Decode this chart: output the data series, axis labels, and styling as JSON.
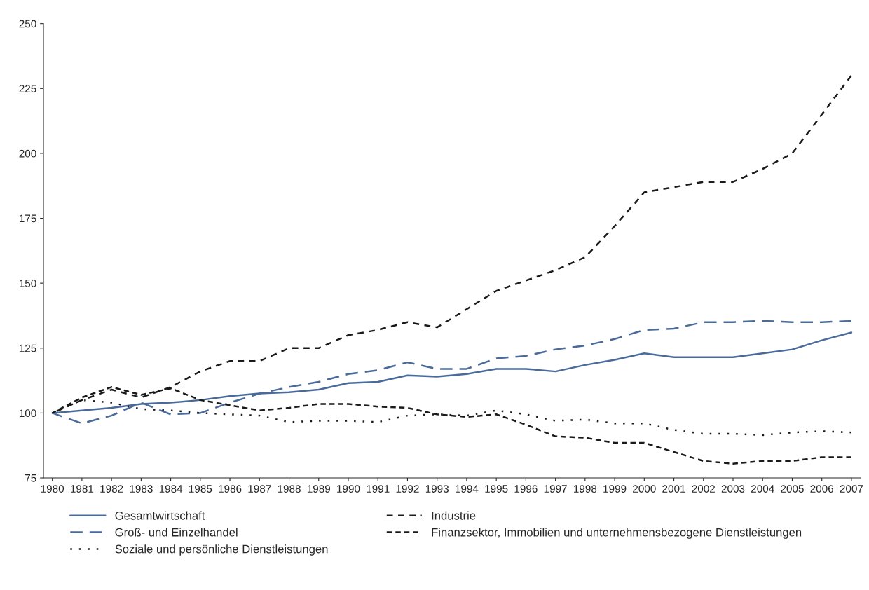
{
  "chart_data": {
    "type": "line",
    "categories": [
      "1980",
      "1981",
      "1982",
      "1983",
      "1984",
      "1985",
      "1986",
      "1987",
      "1988",
      "1989",
      "1990",
      "1991",
      "1992",
      "1993",
      "1994",
      "1995",
      "1996",
      "1997",
      "1998",
      "1999",
      "2000",
      "2001",
      "2002",
      "2003",
      "2004",
      "2005",
      "2006",
      "2007"
    ],
    "series": [
      {
        "name": "Gesamtwirtschaft",
        "color": "#4a6b9a",
        "line_style": "solid",
        "values": [
          100,
          101,
          102,
          103.5,
          104,
          105,
          106.5,
          107.5,
          108,
          109,
          111.5,
          112,
          114.5,
          114,
          115,
          117,
          117,
          116,
          118.5,
          120.5,
          123,
          121.5,
          121.5,
          121.5,
          123,
          124.5,
          128,
          131
        ]
      },
      {
        "name": "Industrie",
        "color": "#1a1a1a",
        "line_style": "loosely dashed",
        "values": [
          100,
          105,
          109,
          106,
          110,
          116,
          120,
          120,
          125,
          125,
          130,
          132,
          135,
          133,
          140,
          147,
          151,
          155,
          160,
          172,
          185,
          187,
          189,
          189,
          194,
          200,
          215,
          230
        ]
      },
      {
        "name": "Groß- und Einzelhandel",
        "color": "#4a6b9a",
        "line_style": "dashed",
        "values": [
          100,
          96,
          99,
          104,
          99.5,
          100,
          104,
          107.5,
          110,
          112,
          115,
          116.5,
          119.5,
          117,
          117,
          121,
          122,
          124.5,
          126,
          128.5,
          132,
          132.5,
          135,
          135,
          135.5,
          135,
          135,
          135.5
        ]
      },
      {
        "name": "Finanzsektor, Immobilien und unternehmensbezogene Dienstleistungen",
        "color": "#1a1a1a",
        "line_style": "densely dashed",
        "values": [
          100,
          106,
          110,
          107,
          109.5,
          105,
          103,
          101,
          102,
          103.5,
          103.5,
          102.5,
          102,
          99.5,
          98.5,
          99.5,
          95.5,
          91,
          90.5,
          88.5,
          88.5,
          85,
          81.5,
          80.5,
          81.5,
          81.5,
          83,
          83
        ]
      },
      {
        "name": "Soziale und persönliche Dienstleistungen",
        "color": "#1a1a1a",
        "line_style": "dotted",
        "values": [
          100,
          105,
          104,
          101.5,
          101,
          100,
          99.5,
          99,
          96.5,
          97,
          97,
          96.5,
          99,
          99.5,
          99,
          101,
          99.5,
          97,
          97.5,
          96,
          96,
          93.5,
          92,
          92,
          91.5,
          92.5,
          93,
          92.5
        ]
      }
    ],
    "ylim": [
      75,
      250
    ],
    "yticks": [
      75,
      100,
      125,
      150,
      175,
      200,
      225,
      250
    ],
    "grid": false,
    "legend": "bottom",
    "marker": "none"
  }
}
